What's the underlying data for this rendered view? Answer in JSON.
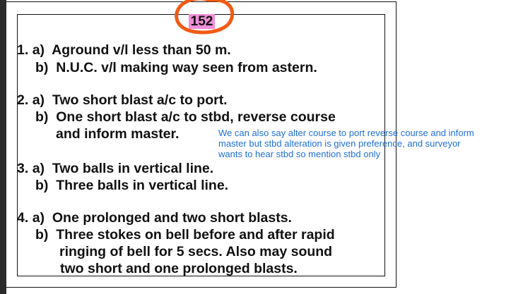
{
  "page_number": "152",
  "answers": [
    {
      "number": "1.",
      "parts": [
        {
          "label": "a)",
          "lines": [
            "Aground v/l less than 50 m."
          ]
        },
        {
          "label": "b)",
          "lines": [
            "N.U.C. v/l making way seen from astern."
          ]
        }
      ]
    },
    {
      "number": "2.",
      "parts": [
        {
          "label": "a)",
          "lines": [
            "Two short blast a/c to port."
          ]
        },
        {
          "label": "b)",
          "lines": [
            "One short blast a/c to stbd, reverse course",
            "and inform master."
          ]
        }
      ]
    },
    {
      "number": "3.",
      "parts": [
        {
          "label": "a)",
          "lines": [
            "Two balls in vertical line."
          ]
        },
        {
          "label": "b)",
          "lines": [
            "Three balls in vertical line."
          ]
        }
      ]
    },
    {
      "number": "4.",
      "parts": [
        {
          "label": "a)",
          "lines": [
            "One prolonged and two short blasts."
          ]
        },
        {
          "label": "b)",
          "lines": [
            "Three stokes on bell before and after rapid",
            "ringing of bell for 5 secs. Also may sound",
            "two short and one prolonged blasts."
          ]
        }
      ]
    }
  ],
  "annotation": {
    "lines": [
      "We can also say alter course to port reverse course and inform",
      "master but stbd alteration is given preference, and surveyor",
      "wants to hear stbd so mention stbd only"
    ],
    "color": "#1f6fd6"
  },
  "colors": {
    "circle_mark": "#f25a14",
    "page_badge": "#f08ed8"
  }
}
